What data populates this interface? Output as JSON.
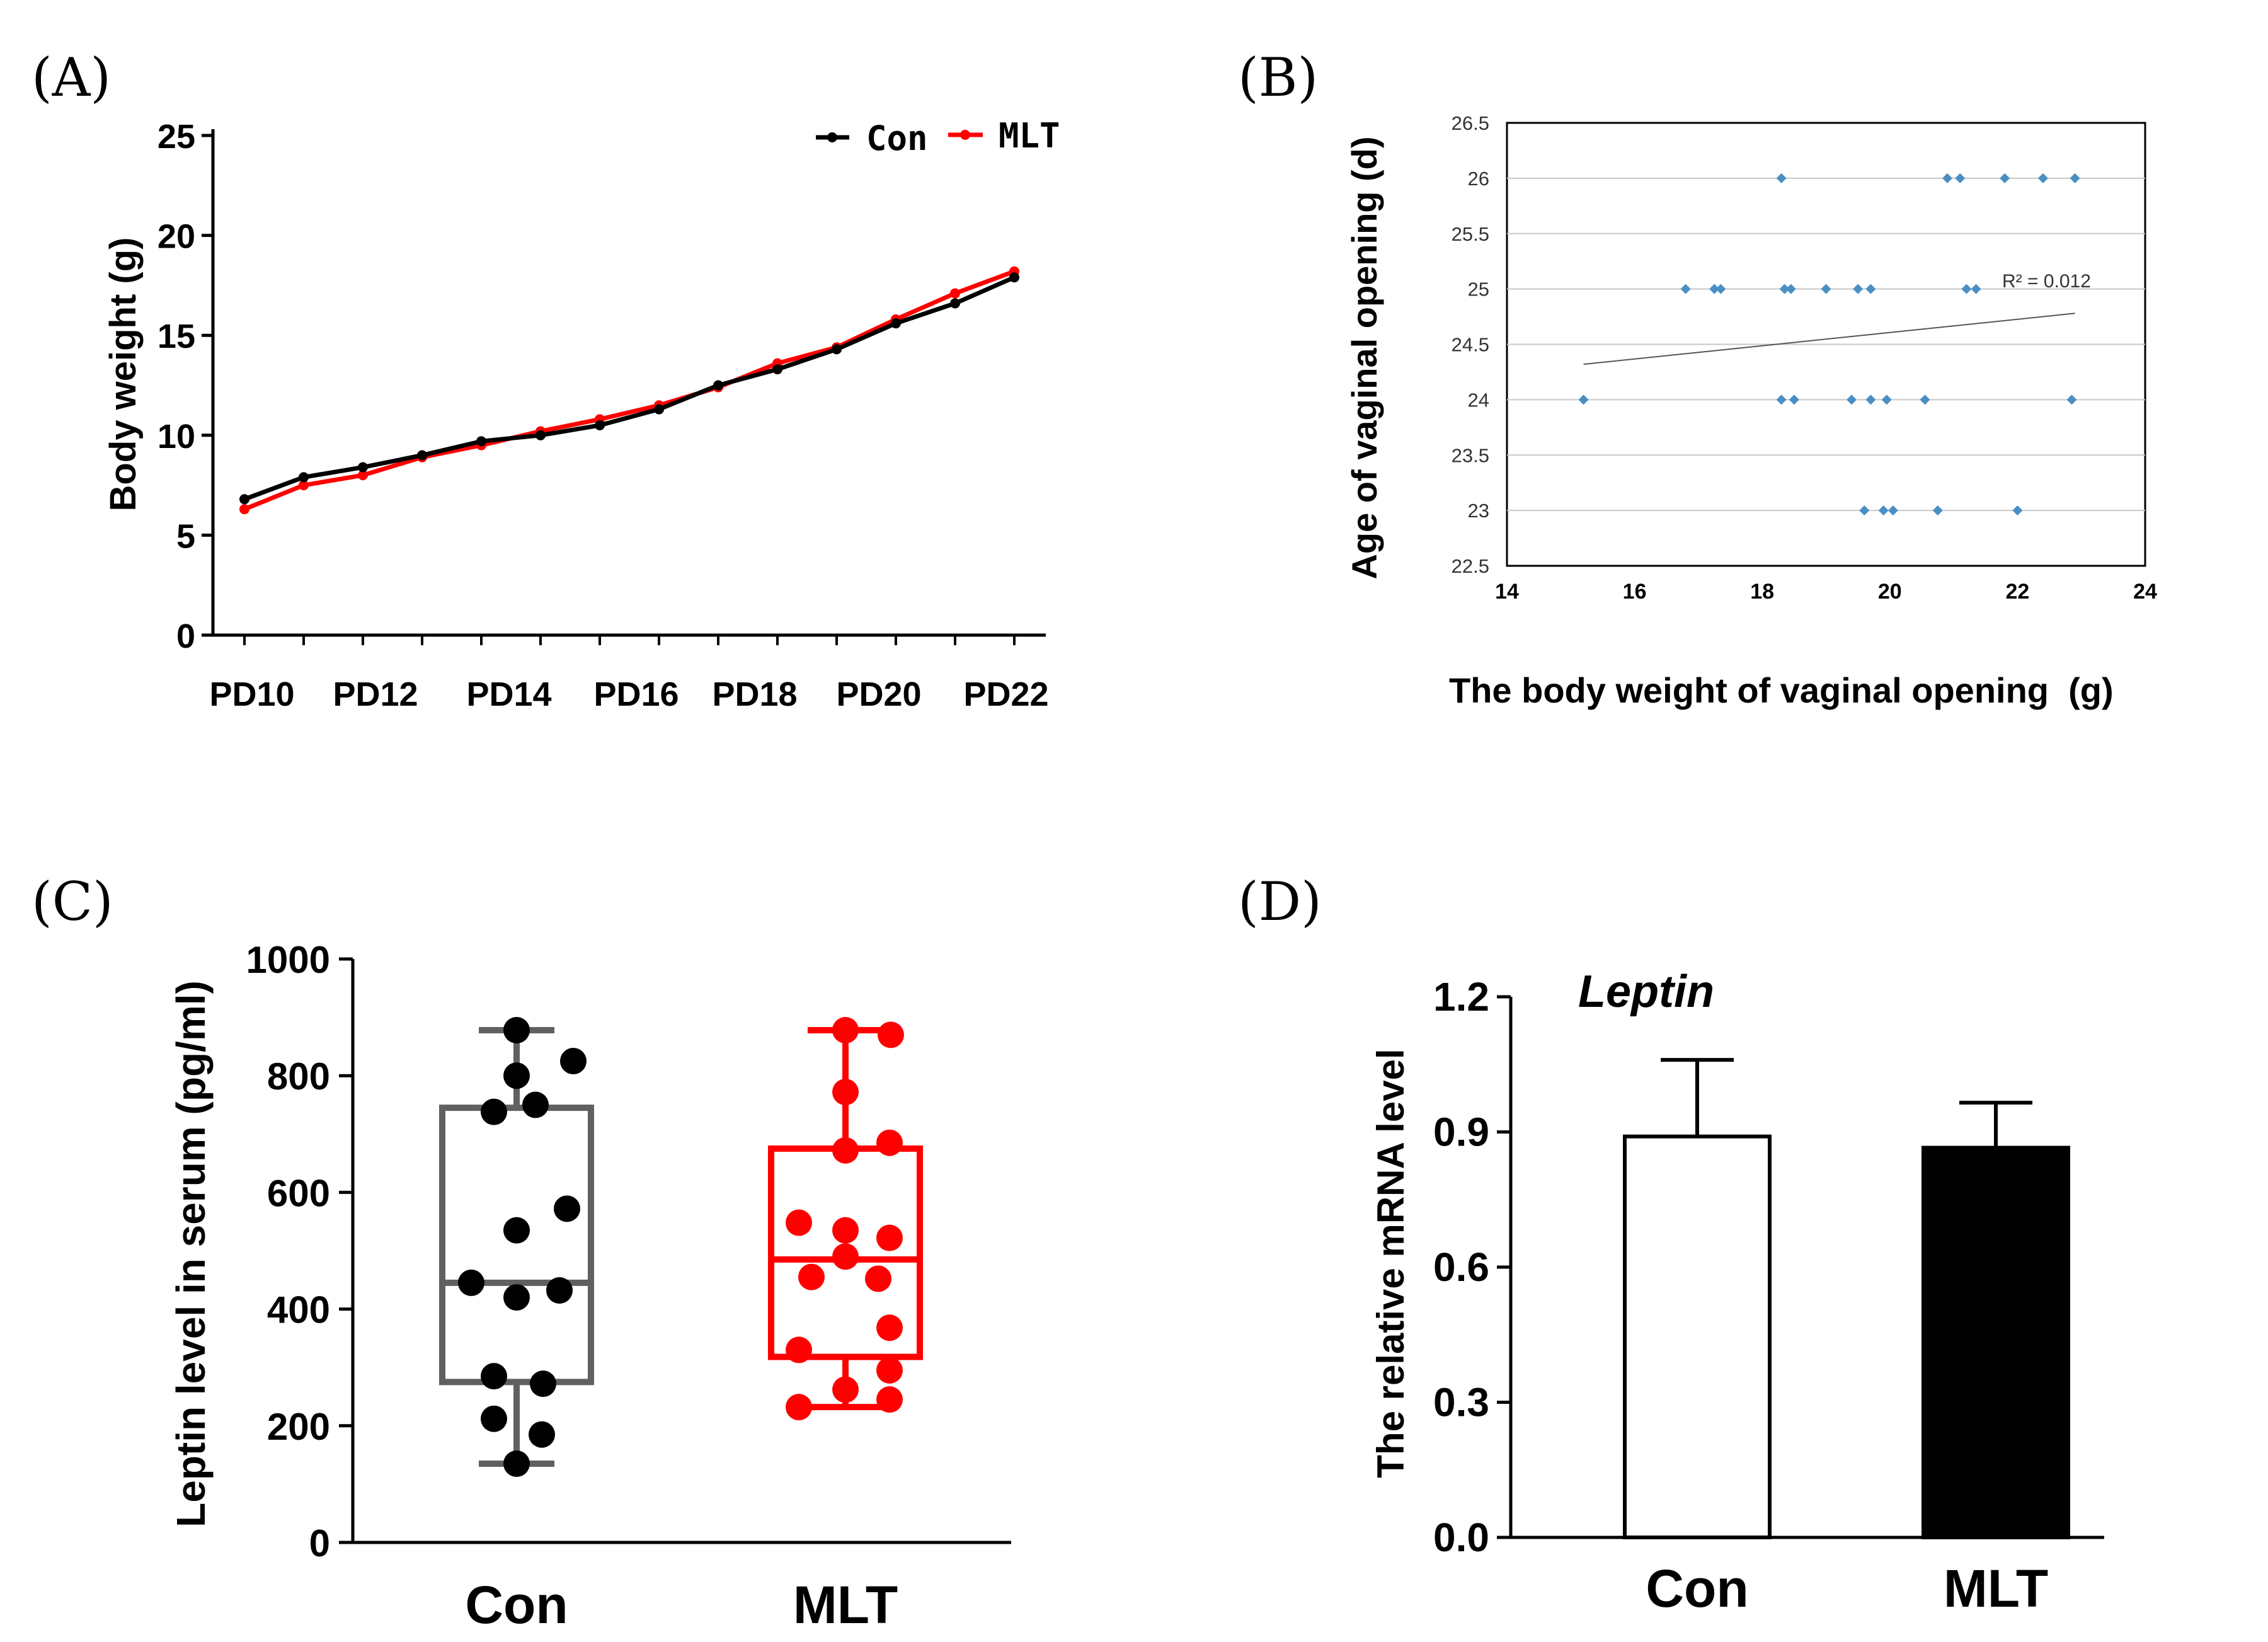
{
  "panels": {
    "a": "(A)",
    "b": "(B)",
    "c": "(C)",
    "d": "(D)"
  },
  "colors": {
    "con": "#000000",
    "mlt": "#ff0000",
    "conBox": "#606060",
    "scatter": "#4a8fc4"
  },
  "chart_data": [
    {
      "id": "A",
      "type": "line",
      "ylabel": "Body weight (g)",
      "ylim": [
        0,
        25
      ],
      "yticks": [
        0,
        5,
        10,
        15,
        20,
        25
      ],
      "tick_labels": [
        "PD10",
        "PD12",
        "PD14",
        "PD16",
        "PD18",
        "PD20",
        "PD22"
      ],
      "x": [
        10,
        11,
        12,
        13,
        14,
        15,
        16,
        17,
        18,
        19,
        20,
        21,
        22,
        23
      ],
      "series": [
        {
          "name": "Con",
          "values": [
            6.8,
            7.9,
            8.4,
            9.0,
            9.7,
            10.0,
            10.5,
            11.3,
            12.5,
            13.3,
            14.3,
            15.6,
            16.6,
            17.9
          ]
        },
        {
          "name": "MLT",
          "values": [
            6.3,
            7.5,
            8.0,
            8.9,
            9.5,
            10.2,
            10.8,
            11.5,
            12.4,
            13.6,
            14.4,
            15.8,
            17.1,
            18.2
          ]
        }
      ],
      "legend": [
        "Con",
        "MLT"
      ]
    },
    {
      "id": "B",
      "type": "scatter",
      "xlabel": "The body weight of vaginal opening  (g)",
      "ylabel": "Age of vaginal opening (d)",
      "xlim": [
        14,
        24
      ],
      "ylim": [
        22.5,
        26.5
      ],
      "xticks": [
        "14",
        "16",
        "18",
        "20",
        "22",
        "24"
      ],
      "yticks": [
        "22.5",
        "23",
        "23.5",
        "24",
        "24.5",
        "25",
        "25.5",
        "26",
        "26.5"
      ],
      "points": [
        [
          18.3,
          26
        ],
        [
          20.9,
          26
        ],
        [
          21.1,
          26
        ],
        [
          21.8,
          26
        ],
        [
          22.4,
          26
        ],
        [
          22.9,
          26
        ],
        [
          16.8,
          25
        ],
        [
          17.25,
          25
        ],
        [
          17.35,
          25
        ],
        [
          18.35,
          25
        ],
        [
          18.45,
          25
        ],
        [
          19.0,
          25
        ],
        [
          19.5,
          25
        ],
        [
          19.7,
          25
        ],
        [
          21.2,
          25
        ],
        [
          21.35,
          25
        ],
        [
          15.2,
          24
        ],
        [
          18.3,
          24
        ],
        [
          18.5,
          24
        ],
        [
          19.4,
          24
        ],
        [
          19.7,
          24
        ],
        [
          19.95,
          24
        ],
        [
          20.55,
          24
        ],
        [
          22.85,
          24
        ],
        [
          19.6,
          23
        ],
        [
          19.9,
          23
        ],
        [
          20.05,
          23
        ],
        [
          20.75,
          23
        ],
        [
          22.0,
          23
        ]
      ],
      "trendline": [
        [
          15.2,
          24.32
        ],
        [
          22.9,
          24.78
        ]
      ],
      "annotation": "R² = 0.012"
    },
    {
      "id": "C",
      "type": "box",
      "ylabel": "Leptin level in serum (pg/ml)",
      "ylim": [
        0,
        1000
      ],
      "yticks": [
        0,
        200,
        400,
        600,
        800,
        1000
      ],
      "categories": [
        "Con",
        "MLT"
      ],
      "boxes": [
        {
          "name": "Con",
          "min": 135,
          "q1": 275,
          "median": 445,
          "q3": 745,
          "max": 878,
          "points": [
            878,
            825,
            800,
            750,
            738,
            572,
            535,
            445,
            432,
            420,
            285,
            272,
            212,
            185,
            135
          ]
        },
        {
          "name": "MLT",
          "min": 232,
          "q1": 318,
          "median": 485,
          "q3": 675,
          "max": 878,
          "points": [
            878,
            870,
            772,
            685,
            672,
            548,
            535,
            522,
            490,
            455,
            452,
            368,
            330,
            295,
            262,
            245,
            232
          ]
        }
      ]
    },
    {
      "id": "D",
      "type": "bar",
      "title": "Leptin",
      "ylabel": "The relative mRNA level",
      "ylim": [
        0,
        1.2
      ],
      "yticks": [
        "0.0",
        "0.3",
        "0.6",
        "0.9",
        "1.2"
      ],
      "categories": [
        "Con",
        "MLT"
      ],
      "values": [
        0.89,
        0.865
      ],
      "errors": [
        0.17,
        0.1
      ]
    }
  ]
}
